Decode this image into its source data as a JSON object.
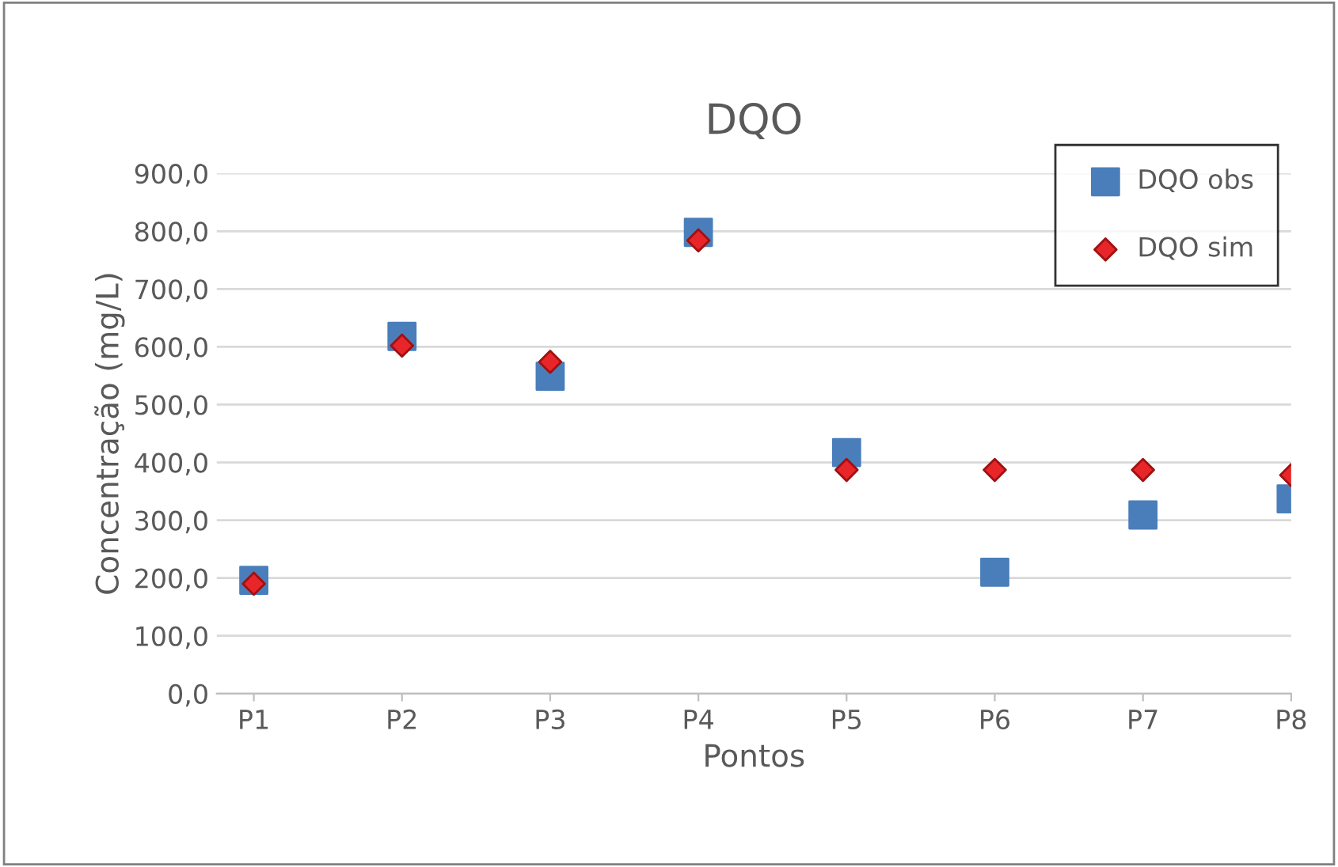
{
  "chart_data": {
    "type": "scatter",
    "title": "DQO",
    "xlabel": "Pontos",
    "ylabel": "Concentração (mg/L)",
    "categories": [
      "P1",
      "P2",
      "P3",
      "P4",
      "P5",
      "P6",
      "P7",
      "P8"
    ],
    "series": [
      {
        "name": "DQO obs",
        "color": "#4a7ebb",
        "marker": "square",
        "values": [
          196,
          618,
          549,
          798,
          417,
          210,
          309,
          337
        ]
      },
      {
        "name": "DQO sim",
        "color": "#e8262a",
        "marker": "diamond",
        "values": [
          190,
          602,
          574,
          784,
          387,
          387,
          387,
          378
        ]
      }
    ],
    "ylim": [
      0,
      900
    ],
    "yticks": [
      {
        "value": 0,
        "label": "0,0"
      },
      {
        "value": 100,
        "label": "100,0"
      },
      {
        "value": 200,
        "label": "200,0"
      },
      {
        "value": 300,
        "label": "300,0"
      },
      {
        "value": 400,
        "label": "400,0"
      },
      {
        "value": 500,
        "label": "500,0"
      },
      {
        "value": 600,
        "label": "600,0"
      },
      {
        "value": 700,
        "label": "700,0"
      },
      {
        "value": 800,
        "label": "800,0"
      },
      {
        "value": 900,
        "label": "900,0"
      }
    ],
    "grid": "y",
    "legend": "top right"
  }
}
